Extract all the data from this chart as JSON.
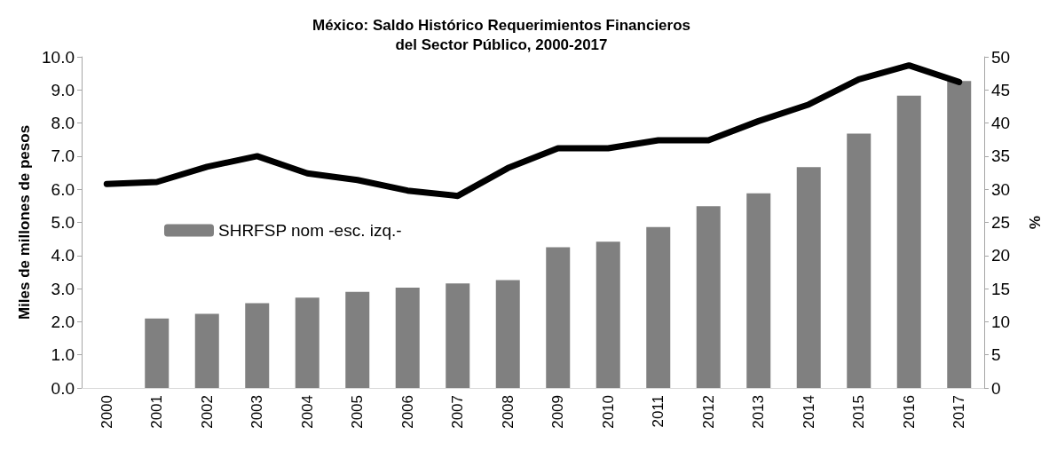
{
  "chart_data": {
    "type": "bar",
    "title": "México: Saldo Histórico Requerimientos Financieros\ndel Sector Público, 2000-2017",
    "ylabel": "Miles de millones de pesos",
    "y2label": "%",
    "categories": [
      "2000",
      "2001",
      "2002",
      "2003",
      "2004",
      "2005",
      "2006",
      "2007",
      "2008",
      "2009",
      "2010",
      "2011",
      "2012",
      "2013",
      "2014",
      "2015",
      "2016",
      "2017"
    ],
    "series": [
      {
        "name": "SHRFSP nom -esc. izq.-",
        "type": "bar",
        "color": "#808080",
        "values": [
          null,
          2.1,
          2.24,
          2.56,
          2.73,
          2.9,
          3.03,
          3.16,
          3.26,
          4.25,
          4.42,
          4.86,
          5.49,
          5.88,
          6.67,
          7.68,
          8.83,
          9.27
        ]
      },
      {
        "type": "line",
        "axis": "y2",
        "color": "#000000",
        "values": [
          30.8,
          31.1,
          33.4,
          35.0,
          32.4,
          31.4,
          29.8,
          29.0,
          33.2,
          36.2,
          36.2,
          37.4,
          37.4,
          40.3,
          42.8,
          46.6,
          48.7,
          46.2
        ]
      }
    ],
    "ylim": [
      0,
      10
    ],
    "yticks": [
      {
        "value": 0,
        "label": "0.0"
      },
      {
        "value": 1,
        "label": "1.0"
      },
      {
        "value": 2,
        "label": "2.0"
      },
      {
        "value": 3,
        "label": "3.0"
      },
      {
        "value": 4,
        "label": "4.0"
      },
      {
        "value": 5,
        "label": "5.0"
      },
      {
        "value": 6,
        "label": "6.0"
      },
      {
        "value": 7,
        "label": "7.0"
      },
      {
        "value": 8,
        "label": "8.0"
      },
      {
        "value": 9,
        "label": "9.0"
      },
      {
        "value": 10,
        "label": "10.0"
      }
    ],
    "y2lim": [
      0,
      50
    ],
    "y2ticks": [
      0,
      5,
      10,
      15,
      20,
      25,
      30,
      35,
      40,
      45,
      50
    ],
    "grid": false,
    "legend": "left",
    "marker": "none"
  }
}
